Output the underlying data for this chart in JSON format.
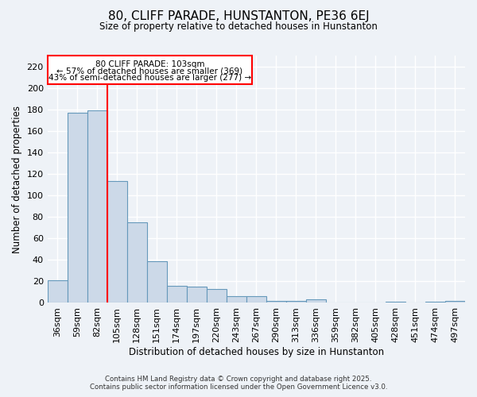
{
  "title": "80, CLIFF PARADE, HUNSTANTON, PE36 6EJ",
  "subtitle": "Size of property relative to detached houses in Hunstanton",
  "xlabel": "Distribution of detached houses by size in Hunstanton",
  "ylabel": "Number of detached properties",
  "bar_color": "#ccd9e8",
  "bar_edge_color": "#6699bb",
  "categories": [
    "36sqm",
    "59sqm",
    "82sqm",
    "105sqm",
    "128sqm",
    "151sqm",
    "174sqm",
    "197sqm",
    "220sqm",
    "243sqm",
    "267sqm",
    "290sqm",
    "313sqm",
    "336sqm",
    "359sqm",
    "382sqm",
    "405sqm",
    "428sqm",
    "451sqm",
    "474sqm",
    "497sqm"
  ],
  "values": [
    21,
    177,
    179,
    113,
    75,
    39,
    16,
    15,
    13,
    6,
    6,
    2,
    2,
    3,
    0,
    0,
    0,
    1,
    0,
    1,
    2
  ],
  "ylim": [
    0,
    230
  ],
  "yticks": [
    0,
    20,
    40,
    60,
    80,
    100,
    120,
    140,
    160,
    180,
    200,
    220
  ],
  "red_line_index": 2.5,
  "annotation_title": "80 CLIFF PARADE: 103sqm",
  "annotation_line1": "← 57% of detached houses are smaller (369)",
  "annotation_line2": "43% of semi-detached houses are larger (277) →",
  "footer1": "Contains HM Land Registry data © Crown copyright and database right 2025.",
  "footer2": "Contains public sector information licensed under the Open Government Licence v3.0.",
  "background_color": "#eef2f7",
  "grid_color": "#ffffff"
}
